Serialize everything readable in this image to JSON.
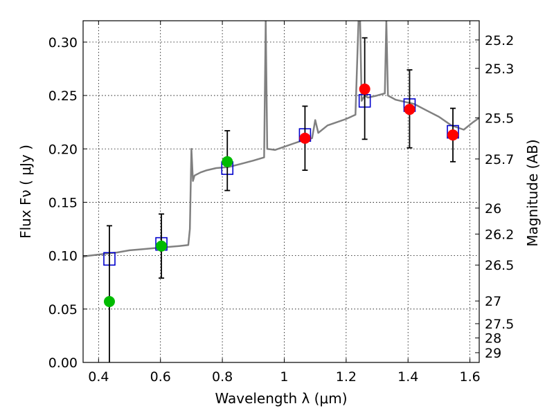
{
  "chart_data": {
    "type": "scatter",
    "xlabel": "Wavelength  λ (μm)",
    "ylabel": "Flux  Fν  ( μJy )",
    "y2label": "Magnitude (AB)",
    "xlim": [
      0.35,
      1.63
    ],
    "ylim": [
      0.0,
      0.32
    ],
    "grid": true,
    "x_ticks": [
      0.4,
      0.6,
      0.8,
      1.0,
      1.2,
      1.4,
      1.6
    ],
    "x_tick_labels": [
      "0.4",
      "0.6",
      "0.8",
      "1",
      "1.2",
      "1.4",
      "1.6"
    ],
    "y_ticks": [
      0.0,
      0.05,
      0.1,
      0.15,
      0.2,
      0.25,
      0.3
    ],
    "y_tick_labels": [
      "0.00",
      "0.05",
      "0.10",
      "0.15",
      "0.20",
      "0.25",
      "0.30"
    ],
    "mag_ticks": [
      25.2,
      25.3,
      25.5,
      25.7,
      26,
      26.2,
      26.5,
      27,
      27.5,
      28,
      29
    ],
    "mag_tick_labels": [
      "25.2",
      "25.3",
      "25.5",
      "25.7",
      "26",
      "26.2",
      "26.5",
      "27",
      "27.5",
      "28",
      "29"
    ],
    "colors": {
      "spectrum": "#808080",
      "model": "#0000cc",
      "green": "#00bb00",
      "red": "#ff0000",
      "error": "#000000",
      "grid": "#000000"
    },
    "series": [
      {
        "kind": "spectrum",
        "x": [
          0.35,
          0.37,
          0.4,
          0.43,
          0.46,
          0.5,
          0.54,
          0.58,
          0.62,
          0.66,
          0.69,
          0.695,
          0.7,
          0.705,
          0.71,
          0.73,
          0.75,
          0.78,
          0.82,
          0.86,
          0.9,
          0.935,
          0.94,
          0.945,
          0.97,
          1.0,
          1.03,
          1.06,
          1.09,
          1.1,
          1.11,
          1.14,
          1.17,
          1.2,
          1.23,
          1.24,
          1.245,
          1.25,
          1.26,
          1.27,
          1.3,
          1.325,
          1.33,
          1.335,
          1.36,
          1.39,
          1.42,
          1.46,
          1.5,
          1.54,
          1.58,
          1.61,
          1.63
        ],
        "y": [
          0.099,
          0.1,
          0.101,
          0.102,
          0.103,
          0.105,
          0.106,
          0.107,
          0.108,
          0.109,
          0.11,
          0.125,
          0.2,
          0.17,
          0.175,
          0.178,
          0.18,
          0.182,
          0.183,
          0.186,
          0.189,
          0.192,
          0.32,
          0.2,
          0.199,
          0.202,
          0.205,
          0.208,
          0.21,
          0.227,
          0.215,
          0.222,
          0.225,
          0.228,
          0.232,
          0.32,
          0.32,
          0.245,
          0.25,
          0.248,
          0.25,
          0.252,
          0.32,
          0.25,
          0.246,
          0.244,
          0.242,
          0.236,
          0.23,
          0.222,
          0.218,
          0.225,
          0.229
        ]
      },
      {
        "kind": "model",
        "x": [
          0.435,
          0.603,
          0.816,
          1.067,
          1.26,
          1.405,
          1.545
        ],
        "y": [
          0.097,
          0.111,
          0.182,
          0.213,
          0.245,
          0.241,
          0.216
        ]
      },
      {
        "kind": "points-green",
        "x": [
          0.435,
          0.603,
          0.816
        ],
        "y": [
          0.057,
          0.109,
          0.188
        ],
        "err_low": [
          0.057,
          0.03,
          0.027
        ],
        "err_high": [
          0.071,
          0.03,
          0.029
        ]
      },
      {
        "kind": "points-red",
        "x": [
          1.067,
          1.26,
          1.405,
          1.545
        ],
        "y": [
          0.21,
          0.256,
          0.237,
          0.213
        ],
        "err_low": [
          0.03,
          0.047,
          0.036,
          0.025
        ],
        "err_high": [
          0.03,
          0.048,
          0.037,
          0.025
        ]
      }
    ]
  }
}
